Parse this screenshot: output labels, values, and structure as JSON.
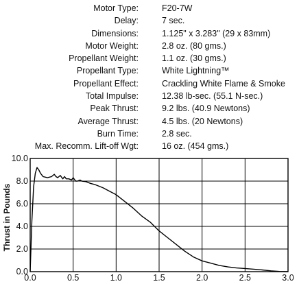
{
  "specs": [
    {
      "label": "Motor Type:",
      "value": "F20-7W"
    },
    {
      "label": "Delay:",
      "value": "7 sec."
    },
    {
      "label": "Dimensions:",
      "value": "1.125\" x 3.283\" (29 x 83mm)"
    },
    {
      "label": "Motor Weight:",
      "value": "2.8 oz. (80 gms.)"
    },
    {
      "label": "Propellant Weight:",
      "value": "1.1 oz. (30 gms.)"
    },
    {
      "label": "Propellant Type:",
      "value": "White Lightning™"
    },
    {
      "label": "Propellant Effect:",
      "value": "Crackling White Flame & Smoke"
    },
    {
      "label": "Total  Impulse:",
      "value": "12.38 lb-sec. (55.1 N-sec.)"
    },
    {
      "label": "Peak Thrust:",
      "value": "9.2 lbs. (40.9 Newtons)"
    },
    {
      "label": "Average Thrust:",
      "value": "4.5 lbs. (20 Newtons)"
    },
    {
      "label": "Burn Time:",
      "value": "2.8 sec."
    },
    {
      "label": "Max. Recomm. Lift-off Wgt:",
      "value": "16 oz. (454 gms.)"
    }
  ],
  "chart_data": {
    "type": "line",
    "title": "",
    "xlabel": "",
    "ylabel": "Thrust in Pounds",
    "xlim": [
      0,
      3.0
    ],
    "ylim": [
      0,
      10.0
    ],
    "x_ticks": [
      0.0,
      0.5,
      1.0,
      1.5,
      2.0,
      2.5,
      3.0
    ],
    "x_tick_labels": [
      "0.0",
      "0.5",
      "1.0",
      "1.5",
      "2.0",
      "2.5",
      "3.0"
    ],
    "y_ticks": [
      0.0,
      2.0,
      4.0,
      6.0,
      8.0,
      10.0
    ],
    "y_tick_labels": [
      "0.0",
      "2.0",
      "4.0",
      "6.0",
      "8.0",
      "10.0"
    ],
    "grid": true,
    "line_color": "#000000",
    "series": [
      {
        "x": [
          0.0,
          0.02,
          0.04,
          0.06,
          0.08,
          0.1,
          0.12,
          0.15,
          0.2,
          0.25,
          0.28,
          0.3,
          0.32,
          0.35,
          0.38,
          0.4,
          0.42,
          0.45,
          0.48,
          0.5,
          0.53,
          0.55,
          0.58,
          0.6,
          0.65,
          0.7,
          0.75,
          0.8,
          0.85,
          0.9,
          1.0,
          1.1,
          1.2,
          1.3,
          1.4,
          1.5,
          1.6,
          1.7,
          1.8,
          1.9,
          2.0,
          2.1,
          2.2,
          2.3,
          2.4,
          2.5,
          2.6,
          2.7,
          2.8,
          2.9,
          3.0
        ],
        "y": [
          0.0,
          4.5,
          7.5,
          8.7,
          9.2,
          9.0,
          8.7,
          8.4,
          8.3,
          8.4,
          8.6,
          8.4,
          8.3,
          8.5,
          8.2,
          8.4,
          8.2,
          8.2,
          8.1,
          8.3,
          8.0,
          8.0,
          8.1,
          8.0,
          7.95,
          7.8,
          7.7,
          7.55,
          7.4,
          7.2,
          6.8,
          6.2,
          5.6,
          4.9,
          4.35,
          3.6,
          3.0,
          2.4,
          1.8,
          1.3,
          0.95,
          0.75,
          0.55,
          0.42,
          0.33,
          0.28,
          0.22,
          0.15,
          0.07,
          0.02,
          0.0
        ]
      }
    ]
  }
}
